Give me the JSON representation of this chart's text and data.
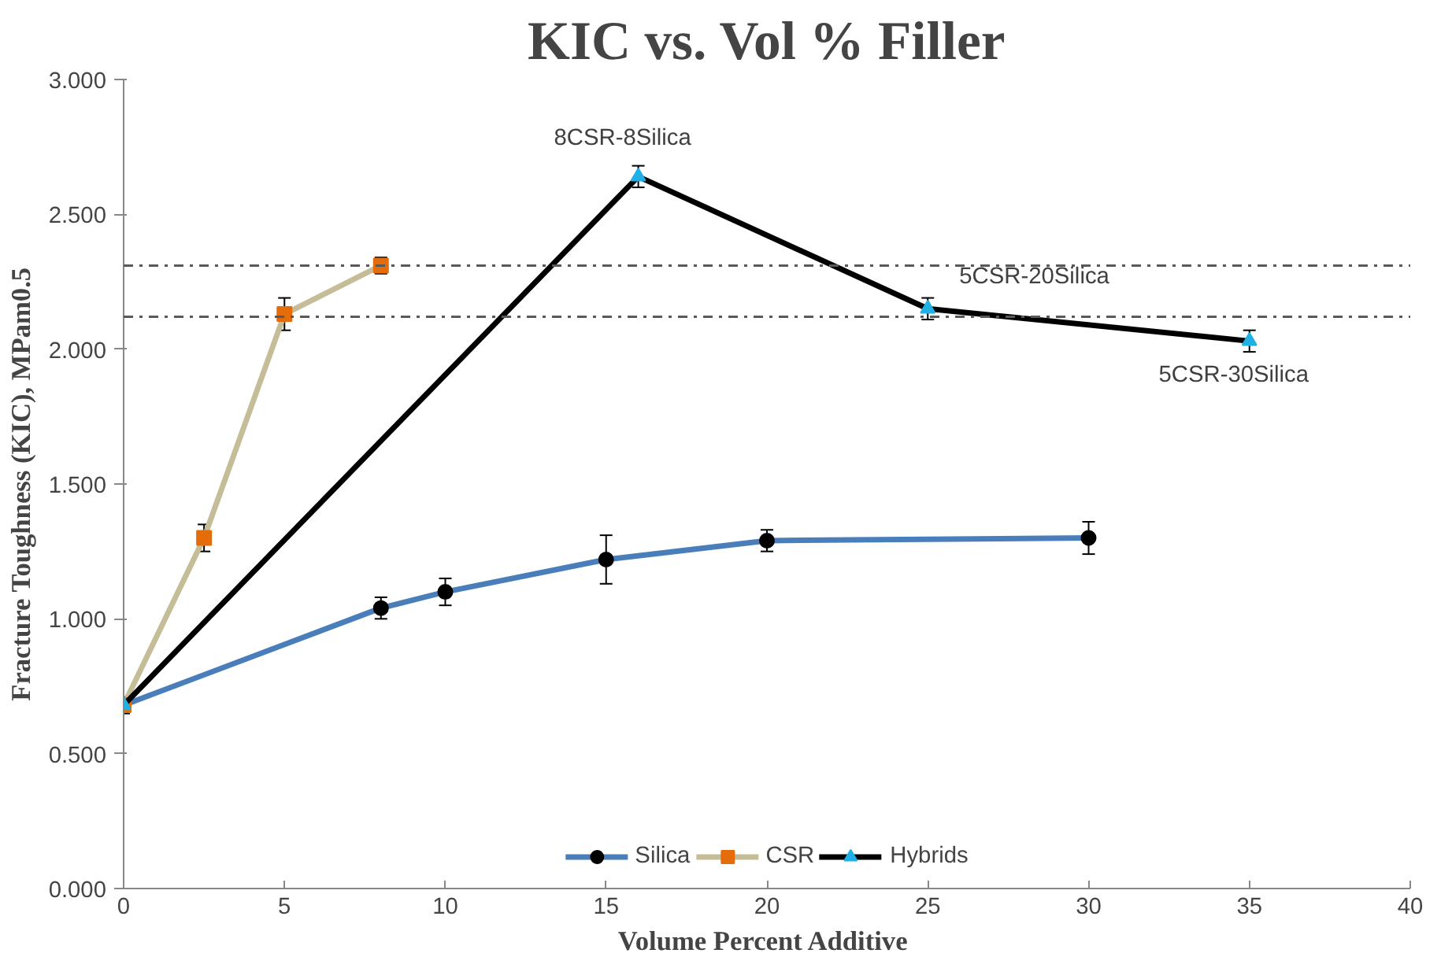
{
  "chart_data": {
    "type": "line",
    "title": "KIC vs. Vol % Filler",
    "xlabel": "Volume Percent  Additive",
    "ylabel": "Fracture Toughness (KIC), MPam0.5",
    "series": [
      {
        "name": "Silica",
        "color": "#4a7ebb",
        "colors": [
          "#000000",
          "#000000",
          "#000000",
          "#000000",
          "#000000",
          "#000000"
        ],
        "marker": "circle",
        "x": [
          0,
          8,
          10,
          15,
          20,
          30
        ],
        "values": [
          0.68,
          1.04,
          1.1,
          1.22,
          1.29,
          1.3
        ],
        "errors": [
          0.03,
          0.04,
          0.05,
          0.09,
          0.04,
          0.06
        ]
      },
      {
        "name": "CSR",
        "color": "#c4bd97",
        "colors": [
          "#e46c0a",
          "#e46c0a",
          "#e46c0a",
          "#e46c0a"
        ],
        "marker": "square",
        "x": [
          0,
          2.5,
          5,
          8
        ],
        "values": [
          0.68,
          1.3,
          2.13,
          2.31
        ],
        "errors": [
          0.03,
          0.05,
          0.06,
          0.03
        ]
      },
      {
        "name": "Hybrids",
        "color": "#000000",
        "colors": [
          "#1fb0e6",
          "#1fb0e6",
          "#1fb0e6",
          "#1fb0e6"
        ],
        "marker": "triangle",
        "x": [
          0,
          16,
          25,
          35
        ],
        "values": [
          0.68,
          2.64,
          2.15,
          2.03
        ],
        "errors": [
          0.03,
          0.04,
          0.04,
          0.04
        ]
      }
    ],
    "ref_lines": [
      {
        "axis": "y",
        "value": 2.31,
        "color": "#595959",
        "line_style": "dashdot"
      },
      {
        "axis": "y",
        "value": 2.12,
        "color": "#595959",
        "line_style": "dashdot"
      }
    ],
    "annotations": [
      {
        "text": "8CSR-8Silica",
        "x": 16,
        "y": 2.64
      },
      {
        "text": "5CSR-20Silica",
        "x": 25,
        "y": 2.15
      },
      {
        "text": "5CSR-30Silica",
        "x": 35,
        "y": 2.03
      }
    ],
    "xlim": [
      0,
      40
    ],
    "xticks": [
      0,
      5,
      10,
      15,
      20,
      25,
      30,
      35,
      40
    ],
    "ylim": [
      0,
      3
    ],
    "yticks": [
      {
        "value": 0,
        "label": "0.000"
      },
      {
        "value": 0.5,
        "label": "0.500"
      },
      {
        "value": 1,
        "label": "1.000"
      },
      {
        "value": 1.5,
        "label": "1.500"
      },
      {
        "value": 2,
        "label": "2.000"
      },
      {
        "value": 2.5,
        "label": "2.500"
      },
      {
        "value": 3,
        "label": "3.000"
      }
    ],
    "grid": false,
    "legend": "bottom",
    "line_style": "solid"
  }
}
